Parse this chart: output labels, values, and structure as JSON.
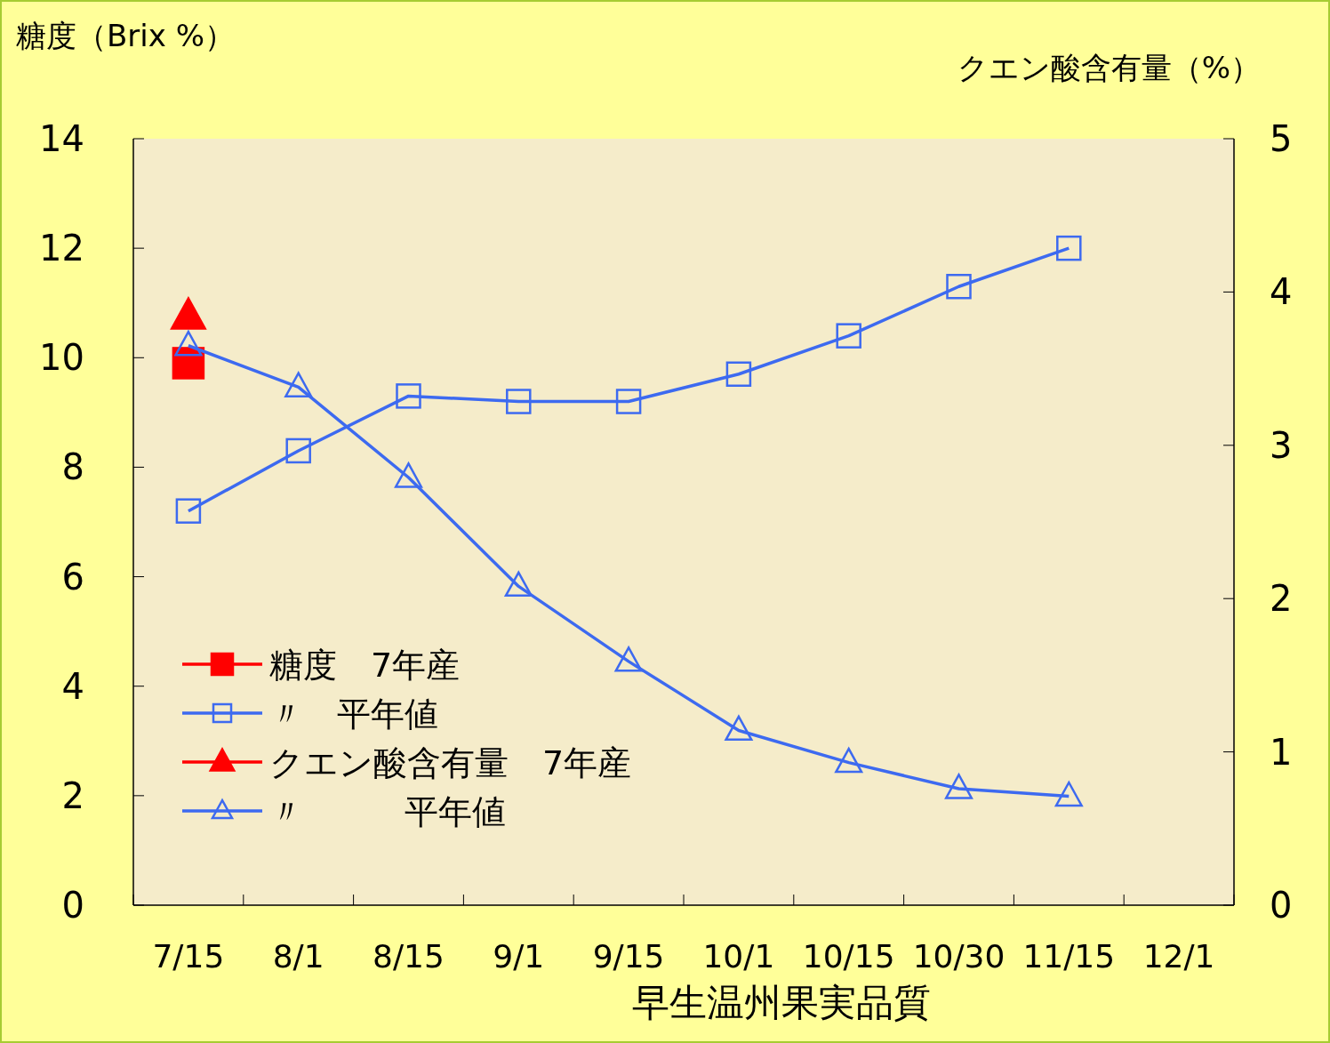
{
  "chart_data": {
    "type": "line",
    "xlabel": "早生温州果実品質",
    "ylabel": "糖度（Brix %）",
    "y2label": "クエン酸含有量（%）",
    "categories": [
      "7/15",
      "8/1",
      "8/15",
      "9/1",
      "9/15",
      "10/1",
      "10/15",
      "10/30",
      "11/15",
      "12/1"
    ],
    "ylim": [
      0,
      14
    ],
    "yticks": [
      0,
      2,
      4,
      6,
      8,
      10,
      12,
      14
    ],
    "y2lim": [
      0,
      5
    ],
    "y2ticks": [
      0,
      1,
      2,
      3,
      4,
      5
    ],
    "legend": "bottom left",
    "grid": false,
    "line_style": "solid",
    "series": [
      {
        "name": "糖度　7年産",
        "color": "#ff0000",
        "marker": "square",
        "values": [
          9.9,
          null,
          null,
          null,
          null,
          null,
          null,
          null,
          null,
          null
        ]
      },
      {
        "name": "〃　平年値",
        "color": "#3d6af0",
        "marker": "square",
        "values": [
          7.2,
          8.3,
          9.3,
          9.2,
          9.2,
          9.7,
          10.4,
          11.3,
          12.0,
          null
        ]
      },
      {
        "name": "クエン酸含有量　7年産",
        "color": "#ff0000",
        "marker": "triangle",
        "axis": "y2",
        "values": [
          3.84,
          null,
          null,
          null,
          null,
          null,
          null,
          null,
          null,
          null
        ]
      },
      {
        "name": "〃　　　平年値",
        "color": "#3d6af0",
        "marker": "triangle",
        "axis": "y2",
        "values": [
          3.65,
          3.38,
          2.79,
          2.08,
          1.59,
          1.14,
          0.93,
          0.76,
          0.71,
          null
        ]
      }
    ]
  }
}
